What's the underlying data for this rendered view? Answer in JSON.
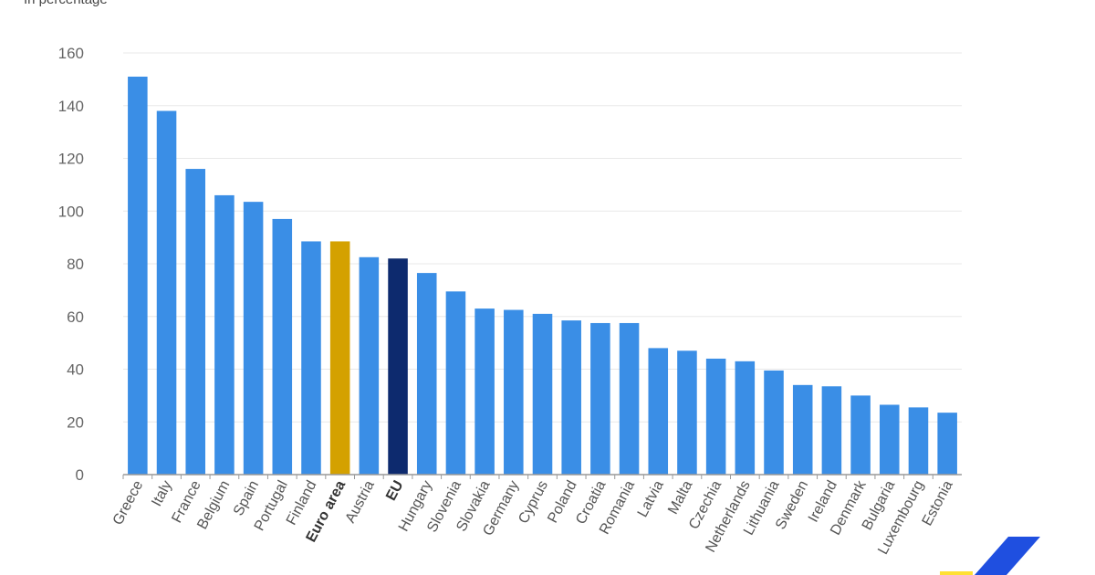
{
  "unit_label": "In percentage",
  "colors": {
    "default": "#3a8ee6",
    "euro_area": "#d4a100",
    "eu": "#0d2a6e",
    "gridline": "#e8e8e8",
    "axis": "#999999",
    "logo_blue": "#1f4fe0",
    "logo_yellow": "#ffe033"
  },
  "chart_data": {
    "type": "bar",
    "title": "",
    "xlabel": "",
    "ylabel": "",
    "ylim": [
      0,
      160
    ],
    "yticks": [
      0,
      20,
      40,
      60,
      80,
      100,
      120,
      140,
      160
    ],
    "grid": true,
    "categories": [
      "Greece",
      "Italy",
      "France",
      "Belgium",
      "Spain",
      "Portugal",
      "Finland",
      "Euro area",
      "Austria",
      "EU",
      "Hungary",
      "Slovenia",
      "Slovakia",
      "Germany",
      "Cyprus",
      "Poland",
      "Croatia",
      "Romania",
      "Latvia",
      "Malta",
      "Czechia",
      "Netherlands",
      "Lithuania",
      "Sweden",
      "Ireland",
      "Denmark",
      "Bulgaria",
      "Luxembourg",
      "Estonia"
    ],
    "values": [
      151,
      138,
      116,
      106,
      103.5,
      97,
      88.5,
      88.5,
      82.5,
      82,
      76.5,
      69.5,
      63,
      62.5,
      61,
      58.5,
      57.5,
      57.5,
      48,
      47,
      44,
      43,
      39.5,
      34,
      33.5,
      30,
      26.5,
      25.5,
      23.5
    ],
    "highlight": {
      "Euro area": "euro_area",
      "EU": "eu"
    },
    "bold_categories": [
      "Euro area",
      "EU"
    ]
  }
}
